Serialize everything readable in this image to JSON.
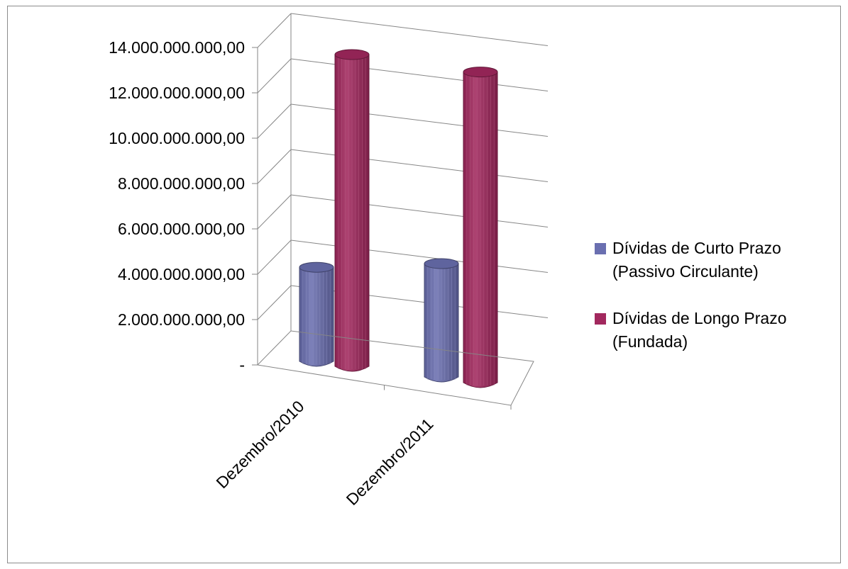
{
  "chart_data": {
    "type": "bar",
    "subtype": "3d-cylinder-clustered",
    "categories": [
      "Dezembro/2010",
      "Dezembro/2011"
    ],
    "series": [
      {
        "name_lines": [
          "Dívidas de Curto Prazo",
          "(Passivo Circulante)"
        ],
        "values": [
          4150000000,
          5000000000
        ],
        "color": "#6a6fb0"
      },
      {
        "name_lines": [
          "Dívidas de Longo Prazo",
          "(Fundada)"
        ],
        "values": [
          13750000000,
          13700000000
        ],
        "color": "#a2285e"
      }
    ],
    "y_ticks": [
      "-",
      "2.000.000.000,00",
      "4.000.000.000,00",
      "6.000.000.000,00",
      "8.000.000.000,00",
      "10.000.000.000,00",
      "12.000.000.000,00",
      "14.000.000.000,00"
    ],
    "ylim": [
      0,
      14000000000
    ],
    "grid": true,
    "legend": "right"
  }
}
